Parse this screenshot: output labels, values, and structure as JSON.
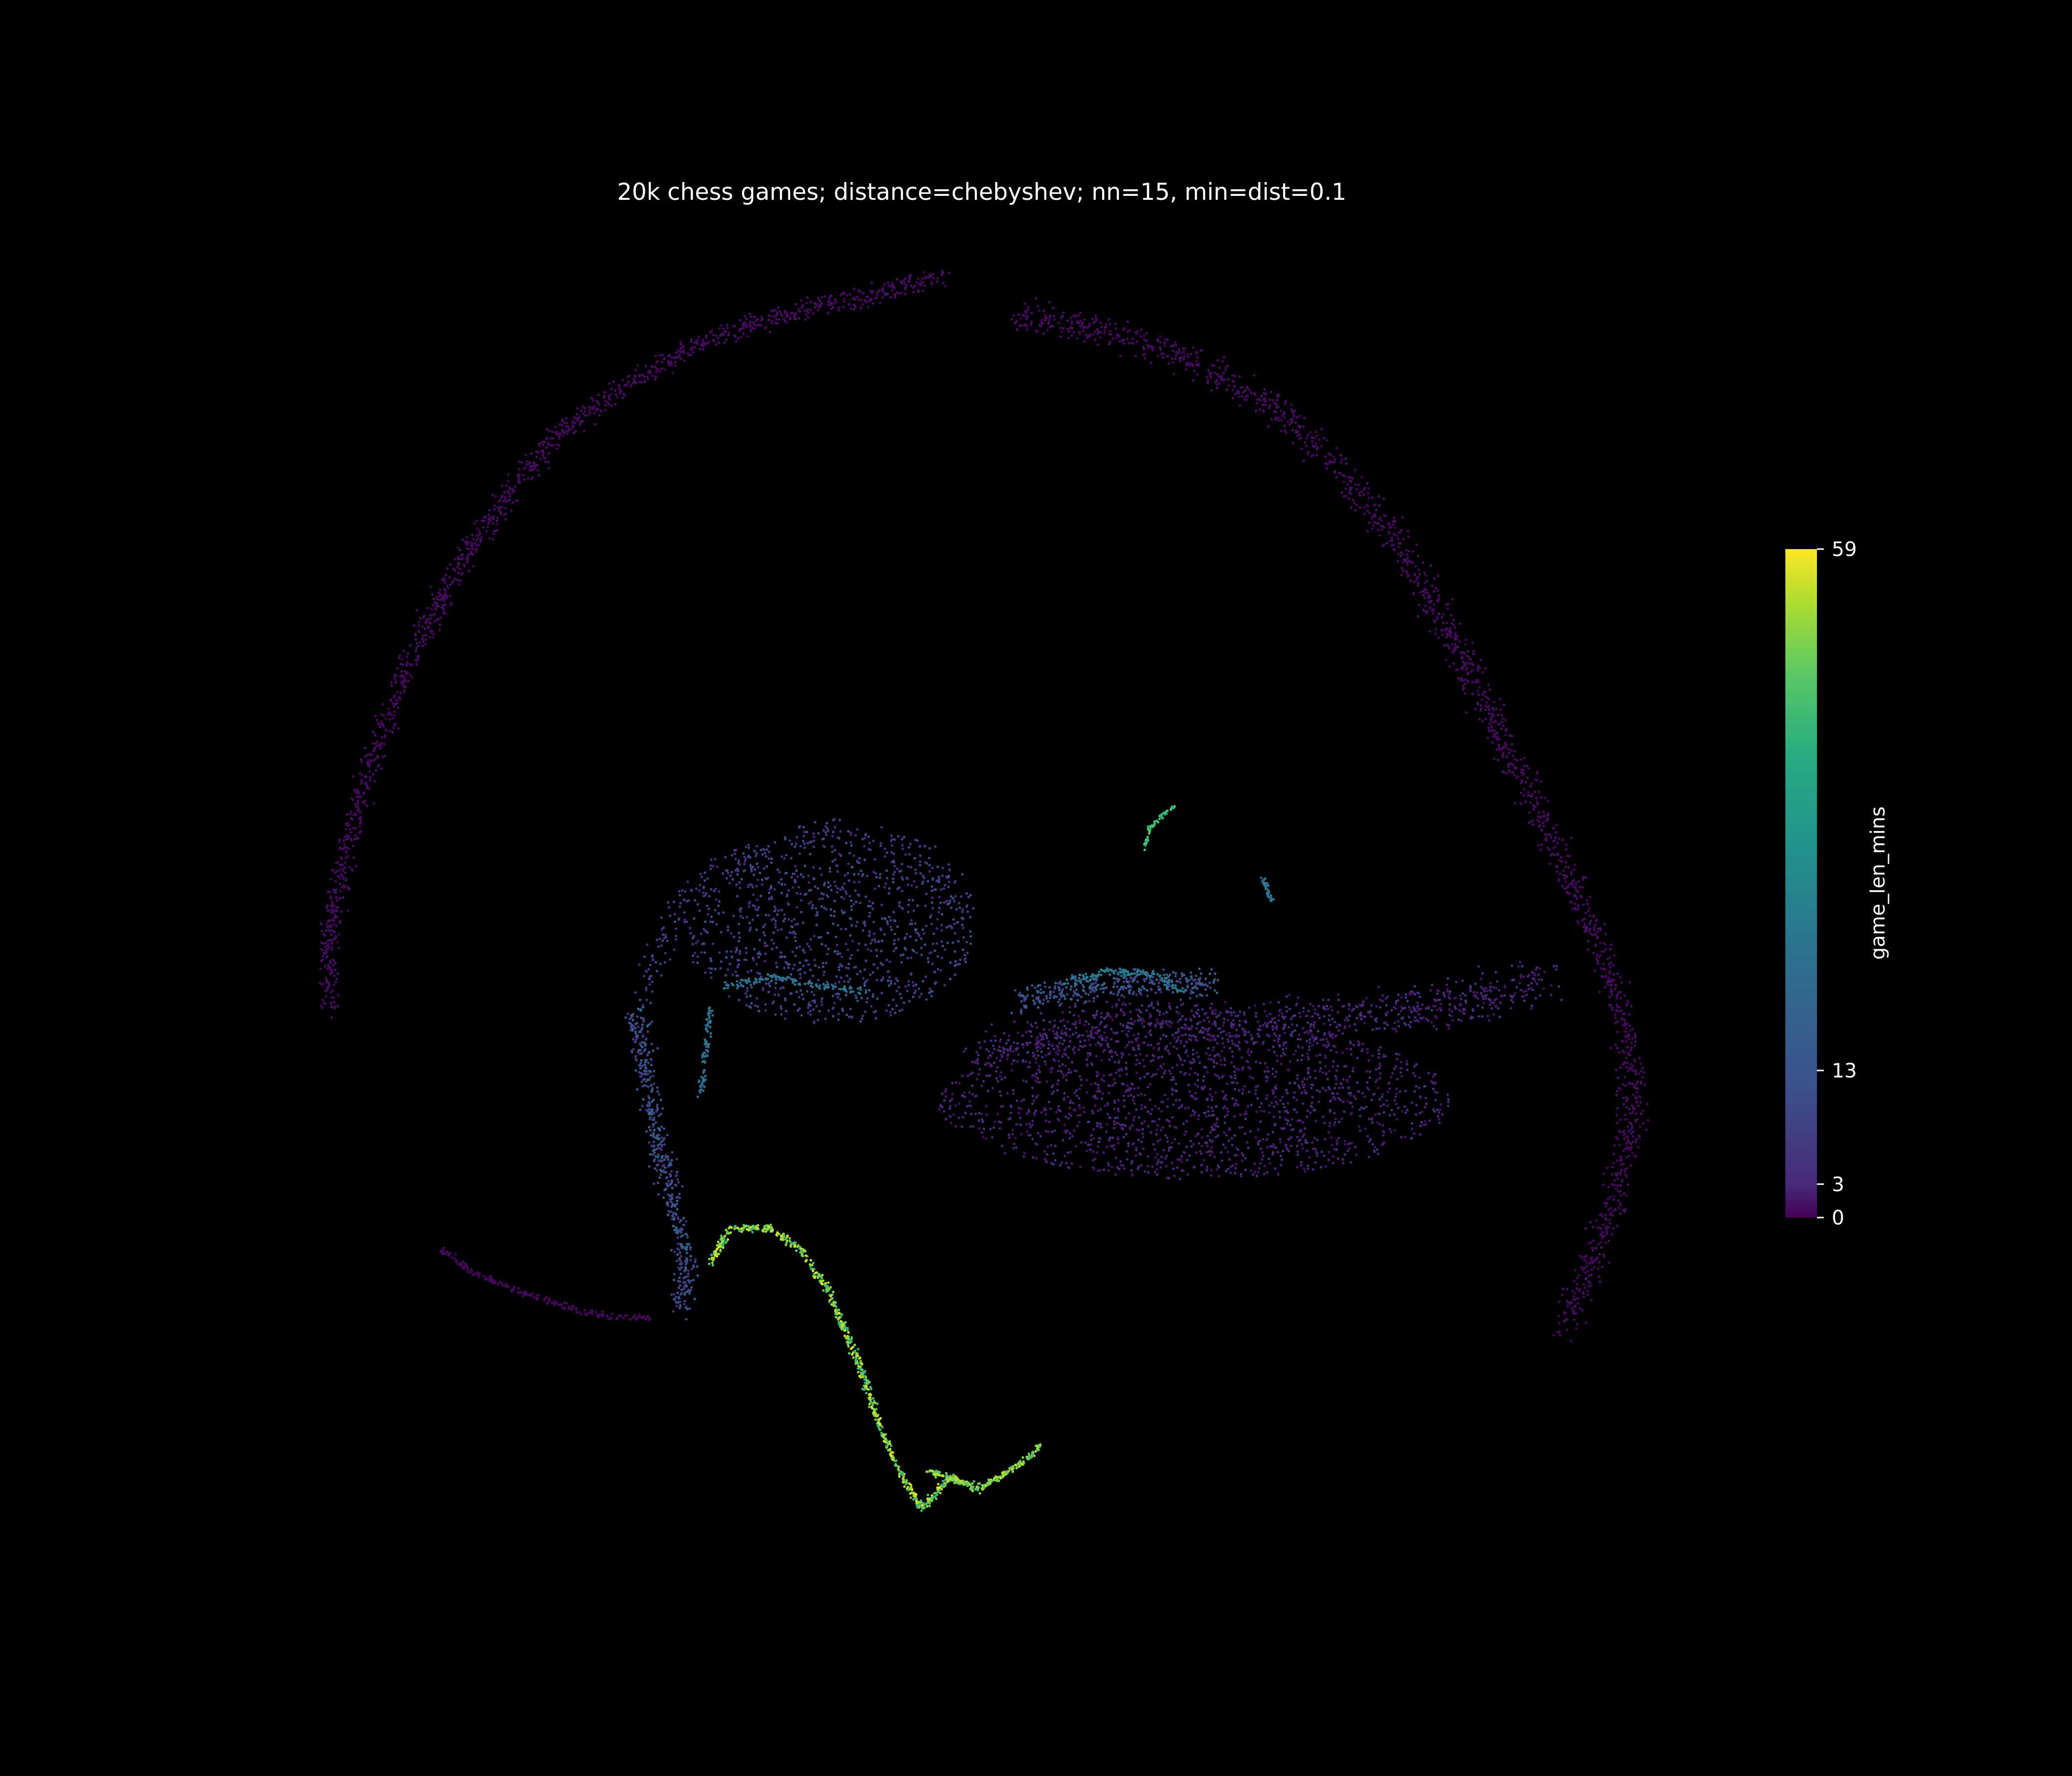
{
  "chart_data": {
    "type": "scatter",
    "title": "20k chess games; distance=chebyshev; nn=15, min=dist=0.1",
    "background": "#000000",
    "axes_visible": false,
    "grid": false,
    "colormap": "viridis",
    "colorbar": {
      "label": "game_len_mins",
      "position": "right",
      "range": [
        0,
        59
      ],
      "ticks": [
        0,
        3,
        13,
        59
      ],
      "scale": "nonlinear"
    },
    "clusters": [
      {
        "region": "outer arc, left",
        "game_len_mins": 1
      },
      {
        "region": "outer arc, right",
        "game_len_mins": 1
      },
      {
        "region": "upper-left lobe",
        "game_len_mins": 10
      },
      {
        "region": "central band",
        "game_len_mins": 6
      },
      {
        "region": "descending tail",
        "game_len_mins": 45
      },
      {
        "region": "small isolated cluster",
        "game_len_mins": 40
      },
      {
        "region": "small isolated cluster",
        "game_len_mins": 22
      }
    ]
  }
}
